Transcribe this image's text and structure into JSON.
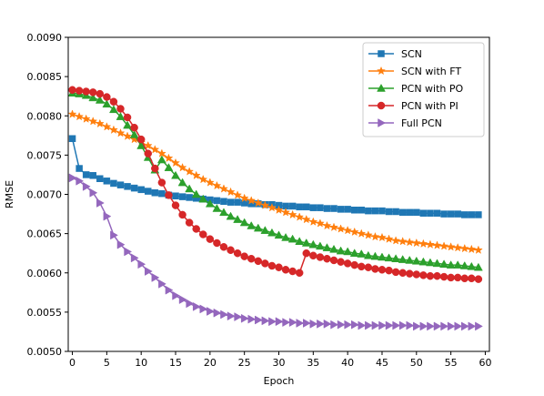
{
  "chart_data": {
    "type": "line",
    "title": "",
    "xlabel": "Epoch",
    "ylabel": "RMSE",
    "xlim": [
      -0.6,
      60.6
    ],
    "ylim": [
      0.005,
      0.009
    ],
    "xticks": [
      0,
      5,
      10,
      15,
      20,
      25,
      30,
      35,
      40,
      45,
      50,
      55,
      60
    ],
    "xtick_labels": [
      "0",
      "5",
      "10",
      "15",
      "20",
      "25",
      "30",
      "35",
      "40",
      "45",
      "50",
      "55",
      "60"
    ],
    "yticks": [
      0.005,
      0.0055,
      0.006,
      0.0065,
      0.007,
      0.0075,
      0.008,
      0.0085,
      0.009
    ],
    "ytick_labels": [
      "0.0050",
      "0.0055",
      "0.0060",
      "0.0065",
      "0.0070",
      "0.0075",
      "0.0080",
      "0.0085",
      "0.0090"
    ],
    "grid": false,
    "legend_position": "top-right",
    "x": [
      0,
      1,
      2,
      3,
      4,
      5,
      6,
      7,
      8,
      9,
      10,
      11,
      12,
      13,
      14,
      15,
      16,
      17,
      18,
      19,
      20,
      21,
      22,
      23,
      24,
      25,
      26,
      27,
      28,
      29,
      30,
      31,
      32,
      33,
      34,
      35,
      36,
      37,
      38,
      39,
      40,
      41,
      42,
      43,
      44,
      45,
      46,
      47,
      48,
      49,
      50,
      51,
      52,
      53,
      54,
      55,
      56,
      57,
      58,
      59
    ],
    "series": [
      {
        "name": "SCN",
        "color": "#1f77b4",
        "marker": "square",
        "values": [
          0.00771,
          0.00733,
          0.00725,
          0.00724,
          0.0072,
          0.00717,
          0.00714,
          0.00712,
          0.0071,
          0.00708,
          0.00706,
          0.00704,
          0.00702,
          0.00701,
          0.00699,
          0.00698,
          0.00697,
          0.00696,
          0.00695,
          0.00694,
          0.00693,
          0.00692,
          0.00691,
          0.0069,
          0.0069,
          0.00689,
          0.00688,
          0.00688,
          0.00687,
          0.00687,
          0.00686,
          0.00685,
          0.00685,
          0.00684,
          0.00684,
          0.00683,
          0.00683,
          0.00682,
          0.00682,
          0.00681,
          0.00681,
          0.0068,
          0.0068,
          0.00679,
          0.00679,
          0.00679,
          0.00678,
          0.00678,
          0.00677,
          0.00677,
          0.00677,
          0.00676,
          0.00676,
          0.00676,
          0.00675,
          0.00675,
          0.00675,
          0.00674,
          0.00674,
          0.00674
        ]
      },
      {
        "name": "SCN with FT",
        "color": "#ff7f0e",
        "marker": "star",
        "values": [
          0.00802,
          0.00799,
          0.00796,
          0.00793,
          0.0079,
          0.00786,
          0.00782,
          0.00778,
          0.00774,
          0.0077,
          0.00766,
          0.00762,
          0.00757,
          0.00752,
          0.00746,
          0.0074,
          0.00734,
          0.00729,
          0.00724,
          0.00719,
          0.00715,
          0.00711,
          0.00707,
          0.00703,
          0.00699,
          0.00695,
          0.00692,
          0.00689,
          0.00686,
          0.00683,
          0.0068,
          0.00677,
          0.00674,
          0.00671,
          0.00668,
          0.00665,
          0.00663,
          0.0066,
          0.00658,
          0.00656,
          0.00654,
          0.00652,
          0.0065,
          0.00648,
          0.00646,
          0.00645,
          0.00643,
          0.00641,
          0.0064,
          0.00639,
          0.00638,
          0.00637,
          0.00636,
          0.00635,
          0.00634,
          0.00633,
          0.00632,
          0.00631,
          0.0063,
          0.00629
        ]
      },
      {
        "name": "PCN with PO",
        "color": "#2ca02c",
        "marker": "triangle-up",
        "values": [
          0.00829,
          0.00828,
          0.00826,
          0.00823,
          0.0082,
          0.00815,
          0.00808,
          0.00799,
          0.00788,
          0.00776,
          0.00762,
          0.00747,
          0.00731,
          0.00744,
          0.00734,
          0.00724,
          0.00715,
          0.00707,
          0.007,
          0.00694,
          0.00688,
          0.00682,
          0.00677,
          0.00672,
          0.00668,
          0.00664,
          0.0066,
          0.00657,
          0.00654,
          0.00651,
          0.00648,
          0.00645,
          0.00643,
          0.0064,
          0.00638,
          0.00636,
          0.00634,
          0.00632,
          0.0063,
          0.00628,
          0.00627,
          0.00625,
          0.00624,
          0.00622,
          0.00621,
          0.0062,
          0.00619,
          0.00618,
          0.00617,
          0.00616,
          0.00615,
          0.00614,
          0.00613,
          0.00612,
          0.00611,
          0.0061,
          0.0061,
          0.00609,
          0.00608,
          0.00607
        ]
      },
      {
        "name": "PCN with PI",
        "color": "#d62728",
        "marker": "circle",
        "values": [
          0.00833,
          0.00832,
          0.00831,
          0.0083,
          0.00828,
          0.00824,
          0.00818,
          0.00809,
          0.00798,
          0.00785,
          0.0077,
          0.00752,
          0.00733,
          0.00715,
          0.00699,
          0.00686,
          0.00674,
          0.00664,
          0.00656,
          0.00649,
          0.00643,
          0.00638,
          0.00633,
          0.00629,
          0.00625,
          0.00621,
          0.00618,
          0.00615,
          0.00612,
          0.00609,
          0.00607,
          0.00604,
          0.00602,
          0.006,
          0.00625,
          0.00622,
          0.0062,
          0.00618,
          0.00616,
          0.00614,
          0.00612,
          0.0061,
          0.00608,
          0.00607,
          0.00605,
          0.00604,
          0.00603,
          0.00601,
          0.006,
          0.00599,
          0.00598,
          0.00597,
          0.00596,
          0.00596,
          0.00595,
          0.00594,
          0.00594,
          0.00593,
          0.00593,
          0.00592
        ]
      },
      {
        "name": "Full PCN",
        "color": "#9467bd",
        "marker": "triangle-right",
        "values": [
          0.00721,
          0.00717,
          0.0071,
          0.00702,
          0.00689,
          0.00672,
          0.00648,
          0.00636,
          0.00627,
          0.00619,
          0.00611,
          0.00602,
          0.00594,
          0.00586,
          0.00578,
          0.00571,
          0.00566,
          0.00561,
          0.00557,
          0.00554,
          0.00551,
          0.00549,
          0.00547,
          0.00545,
          0.00544,
          0.00542,
          0.00541,
          0.0054,
          0.00539,
          0.00538,
          0.00538,
          0.00537,
          0.00537,
          0.00536,
          0.00536,
          0.00535,
          0.00535,
          0.00535,
          0.00534,
          0.00534,
          0.00534,
          0.00534,
          0.00533,
          0.00533,
          0.00533,
          0.00533,
          0.00533,
          0.00533,
          0.00533,
          0.00533,
          0.00532,
          0.00532,
          0.00532,
          0.00532,
          0.00532,
          0.00532,
          0.00532,
          0.00532,
          0.00532,
          0.00532
        ]
      }
    ]
  }
}
